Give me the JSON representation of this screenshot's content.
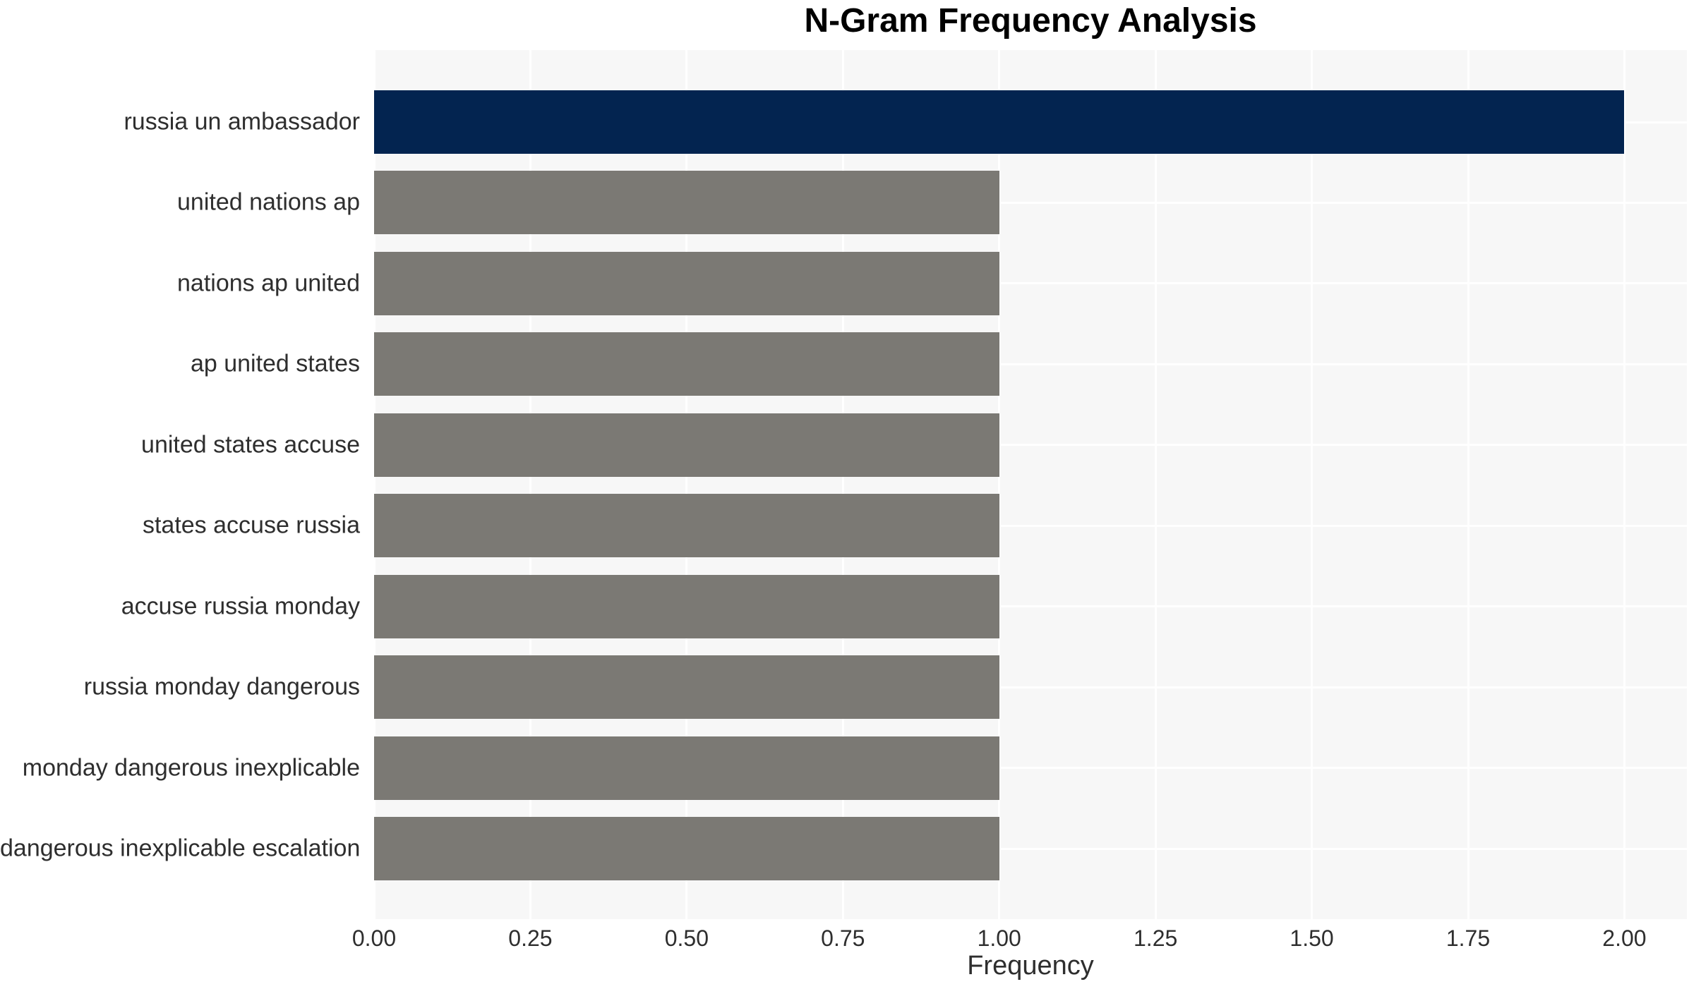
{
  "chart_data": {
    "type": "bar",
    "orientation": "horizontal",
    "title": "N-Gram Frequency Analysis",
    "xlabel": "Frequency",
    "ylabel": "",
    "categories": [
      "russia un ambassador",
      "united nations ap",
      "nations ap united",
      "ap united states",
      "united states accuse",
      "states accuse russia",
      "accuse russia monday",
      "russia monday dangerous",
      "monday dangerous inexplicable",
      "dangerous inexplicable escalation"
    ],
    "values": [
      2,
      1,
      1,
      1,
      1,
      1,
      1,
      1,
      1,
      1
    ],
    "bar_colors": [
      "#032450",
      "#7b7974",
      "#7b7974",
      "#7b7974",
      "#7b7974",
      "#7b7974",
      "#7b7974",
      "#7b7974",
      "#7b7974",
      "#7b7974"
    ],
    "xlim": [
      0,
      2.1
    ],
    "xticks": [
      0,
      0.25,
      0.5,
      0.75,
      1,
      1.25,
      1.5,
      1.75,
      2
    ],
    "xtick_labels": [
      "0.00",
      "0.25",
      "0.50",
      "0.75",
      "1.00",
      "1.25",
      "1.50",
      "1.75",
      "2.00"
    ],
    "grid": true,
    "legend": false,
    "colors": {
      "figure_bg": "#ffffff",
      "plot_bg": "#f7f7f7",
      "grid_line": "#ffffff",
      "highlight_bar": "#032450",
      "default_bar": "#7b7974",
      "axis_text": "#2e2e2e",
      "title_text": "#000000"
    }
  }
}
